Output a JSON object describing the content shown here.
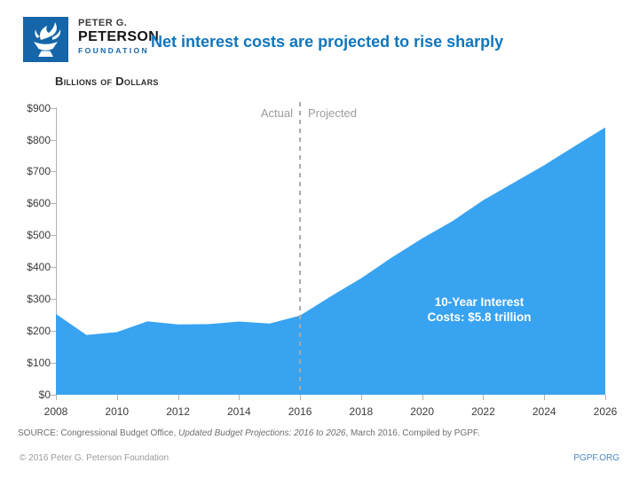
{
  "header": {
    "logo": {
      "line1": "PETER G.",
      "line2": "PETERSON",
      "line3": "FOUNDATION"
    },
    "title": "Net interest costs are projected to rise sharply"
  },
  "chart": {
    "axis_title": "Billions of Dollars",
    "actual_label": "Actual",
    "projected_label": "Projected",
    "annotation_line1": "10-Year Interest",
    "annotation_line2": "Costs: $5.8 trillion"
  },
  "chart_data": {
    "type": "area",
    "title": "Net interest costs are projected to rise sharply",
    "ylabel": "Billions of Dollars",
    "x": [
      2008,
      2009,
      2010,
      2011,
      2012,
      2013,
      2014,
      2015,
      2016,
      2017,
      2018,
      2019,
      2020,
      2021,
      2022,
      2023,
      2024,
      2025,
      2026
    ],
    "values": [
      253,
      187,
      196,
      230,
      220,
      221,
      229,
      223,
      248,
      308,
      365,
      430,
      490,
      545,
      610,
      665,
      720,
      780,
      839
    ],
    "xlim": [
      2008,
      2026
    ],
    "ylim": [
      0,
      900
    ],
    "y_tick_labels": [
      "$0",
      "$100",
      "$200",
      "$300",
      "$400",
      "$500",
      "$600",
      "$700",
      "$800",
      "$900"
    ],
    "x_tick_years": [
      2008,
      2010,
      2012,
      2014,
      2016,
      2018,
      2020,
      2022,
      2024,
      2026
    ],
    "x_tick_labels": [
      "2008",
      "2010",
      "2012",
      "2014",
      "2016",
      "2018",
      "2020",
      "2022",
      "2024",
      "2026"
    ],
    "divider_x": 2016,
    "divider_left_label": "Actual",
    "divider_right_label": "Projected",
    "annotation": "10-Year Interest Costs: $5.8 trillion",
    "grid": false,
    "legend_position": "none",
    "area_color": "#38a3f1"
  },
  "source": {
    "prefix": "SOURCE: Congressional Budget Office, ",
    "italic": "Updated Budget Projections: 2016 to 2026",
    "suffix": ", March 2016. Compiled by PGPF."
  },
  "footer": {
    "copyright": "© 2016 Peter G. Peterson Foundation",
    "site_link": "PGPF.ORG"
  },
  "colors": {
    "title_blue": "#0f76bd",
    "logo_blue": "#1565a9",
    "area_blue": "#38a3f1",
    "divider_gray": "#a8a8a8",
    "label_gray": "#9b9b9b",
    "source_gray": "#6e6e6e",
    "footer_gray": "#9a9a9a",
    "link_blue": "#4a86c6"
  }
}
